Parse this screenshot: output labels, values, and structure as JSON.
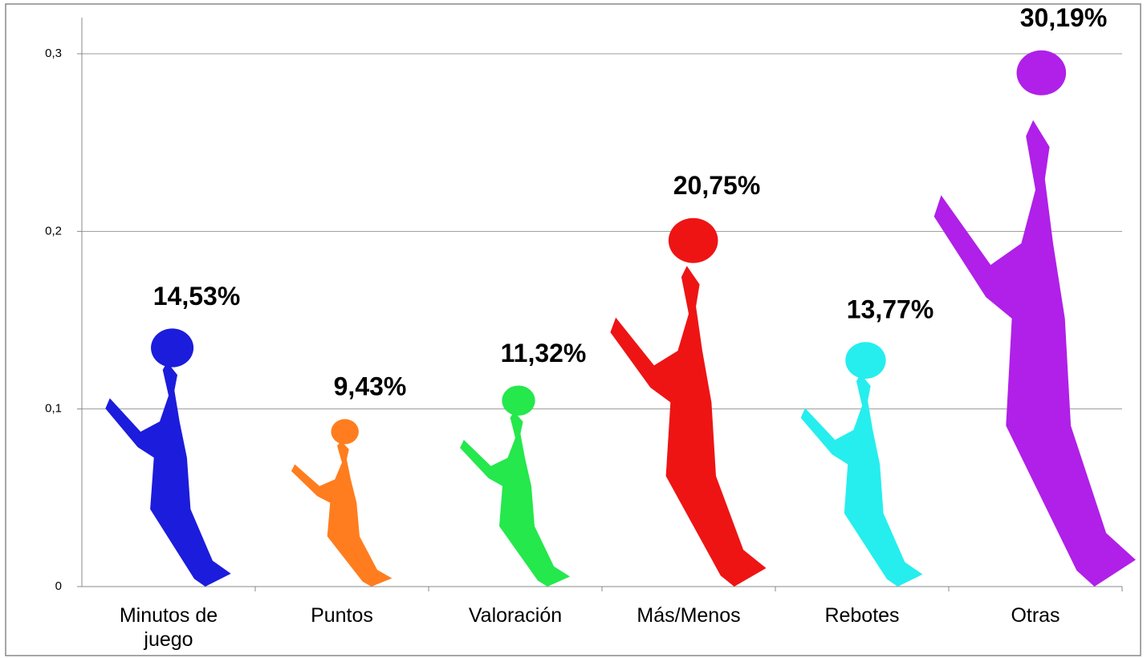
{
  "chart_data": {
    "type": "pictograph",
    "categories": [
      "Minutos de juego",
      "Puntos",
      "Valoración",
      "Más/Menos",
      "Rebotes",
      "Otras"
    ],
    "values": [
      0.1453,
      0.0943,
      0.1132,
      0.2075,
      0.1377,
      0.3019
    ],
    "value_labels": [
      "14,53%",
      "9,43%",
      "11,32%",
      "20,75%",
      "13,77%",
      "30,19%"
    ],
    "colors": [
      "#1c1cdc",
      "#ff7d1e",
      "#24e84c",
      "#ee1414",
      "#26eeee",
      "#b020e8"
    ],
    "ylim": [
      0,
      0.3
    ],
    "yticks": [
      0,
      {
        "value": 0.1,
        "label": "0,1"
      },
      {
        "value": 0.2,
        "label": "0,2"
      },
      {
        "value": 0.3,
        "label": "0,3"
      }
    ],
    "grid": true
  }
}
